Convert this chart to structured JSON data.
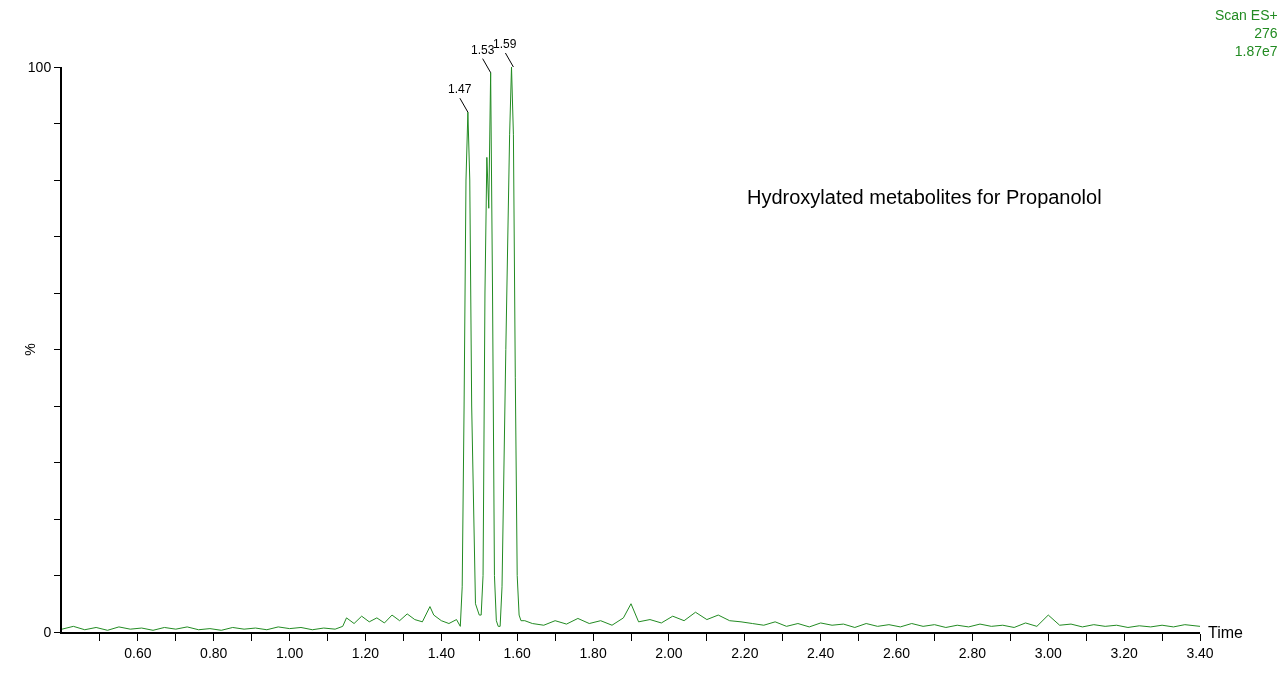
{
  "chart_data": {
    "type": "line",
    "xlabel": "Time",
    "ylabel": "%",
    "annotations": [
      "Scan ES+\n276\n1.87e7",
      "Hydroxylated metabolites for Propanolol",
      {
        "text": "1.47",
        "x": 1.47,
        "y": 92
      },
      {
        "text": "1.53",
        "x": 1.53,
        "y": 99
      },
      {
        "text": "1.59",
        "x": 1.59,
        "y": 100
      }
    ],
    "series": [
      {
        "color": "#228b22",
        "x": [
          0.4,
          0.43,
          0.46,
          0.49,
          0.52,
          0.55,
          0.58,
          0.61,
          0.64,
          0.67,
          0.7,
          0.73,
          0.76,
          0.79,
          0.82,
          0.85,
          0.88,
          0.91,
          0.94,
          0.97,
          1.0,
          1.03,
          1.06,
          1.09,
          1.12,
          1.14,
          1.15,
          1.17,
          1.19,
          1.21,
          1.23,
          1.25,
          1.27,
          1.29,
          1.31,
          1.33,
          1.35,
          1.37,
          1.38,
          1.4,
          1.42,
          1.44,
          1.45,
          1.455,
          1.46,
          1.465,
          1.47,
          1.475,
          1.48,
          1.49,
          1.5,
          1.505,
          1.51,
          1.515,
          1.52,
          1.525,
          1.53,
          1.535,
          1.54,
          1.545,
          1.55,
          1.555,
          1.56,
          1.57,
          1.58,
          1.585,
          1.59,
          1.595,
          1.6,
          1.605,
          1.61,
          1.62,
          1.64,
          1.67,
          1.7,
          1.73,
          1.76,
          1.79,
          1.82,
          1.85,
          1.88,
          1.9,
          1.92,
          1.95,
          1.98,
          2.01,
          2.04,
          2.07,
          2.1,
          2.13,
          2.16,
          2.19,
          2.22,
          2.25,
          2.28,
          2.31,
          2.34,
          2.37,
          2.4,
          2.43,
          2.46,
          2.49,
          2.52,
          2.55,
          2.58,
          2.61,
          2.64,
          2.67,
          2.7,
          2.73,
          2.76,
          2.79,
          2.82,
          2.85,
          2.88,
          2.91,
          2.94,
          2.97,
          3.0,
          3.03,
          3.06,
          3.09,
          3.12,
          3.15,
          3.18,
          3.21,
          3.24,
          3.27,
          3.3,
          3.33,
          3.36,
          3.4
        ],
        "values": [
          0.5,
          1,
          0.4,
          0.8,
          0.3,
          0.9,
          0.5,
          0.7,
          0.3,
          0.8,
          0.5,
          0.9,
          0.4,
          0.6,
          0.3,
          0.8,
          0.5,
          0.7,
          0.4,
          0.9,
          0.6,
          0.8,
          0.4,
          0.7,
          0.5,
          1,
          2.5,
          1.5,
          2.8,
          1.8,
          2.5,
          1.6,
          3,
          2,
          3.2,
          2.2,
          1.8,
          4.5,
          3,
          2,
          1.5,
          2.2,
          1,
          8,
          40,
          80,
          92,
          80,
          40,
          5,
          3,
          3,
          10,
          60,
          84,
          75,
          99,
          60,
          10,
          2,
          1,
          1,
          8,
          50,
          88,
          100,
          88,
          45,
          10,
          3,
          2,
          2,
          1.5,
          1.2,
          2,
          1.4,
          2.4,
          1.5,
          2,
          1.2,
          2.5,
          5,
          1.8,
          2.2,
          1.6,
          2.8,
          2,
          3.5,
          2.2,
          3,
          2,
          1.8,
          1.5,
          1.2,
          1.8,
          1,
          1.5,
          0.9,
          1.6,
          1.2,
          1.4,
          0.8,
          1.5,
          1,
          1.3,
          0.9,
          1.5,
          1,
          1.3,
          0.8,
          1.2,
          0.9,
          1.4,
          1,
          1.2,
          0.8,
          1.6,
          1,
          3,
          1.2,
          1.4,
          0.9,
          1.3,
          1,
          1.2,
          0.8,
          1.1,
          0.9,
          1.2,
          0.9,
          1.3,
          1
        ]
      }
    ],
    "xlim": [
      0.4,
      3.4
    ],
    "ylim": [
      0,
      100
    ],
    "xticks": [
      {
        "value": 0.5,
        "label": null
      },
      {
        "value": 0.6,
        "label": "0.60"
      },
      {
        "value": 0.7,
        "label": null
      },
      {
        "value": 0.8,
        "label": "0.80"
      },
      {
        "value": 0.9,
        "label": null
      },
      {
        "value": 1.0,
        "label": "1.00"
      },
      {
        "value": 1.1,
        "label": null
      },
      {
        "value": 1.2,
        "label": "1.20"
      },
      {
        "value": 1.3,
        "label": null
      },
      {
        "value": 1.4,
        "label": "1.40"
      },
      {
        "value": 1.5,
        "label": null
      },
      {
        "value": 1.6,
        "label": "1.60"
      },
      {
        "value": 1.7,
        "label": null
      },
      {
        "value": 1.8,
        "label": "1.80"
      },
      {
        "value": 1.9,
        "label": null
      },
      {
        "value": 2.0,
        "label": "2.00"
      },
      {
        "value": 2.1,
        "label": null
      },
      {
        "value": 2.2,
        "label": "2.20"
      },
      {
        "value": 2.3,
        "label": null
      },
      {
        "value": 2.4,
        "label": "2.40"
      },
      {
        "value": 2.5,
        "label": null
      },
      {
        "value": 2.6,
        "label": "2.60"
      },
      {
        "value": 2.7,
        "label": null
      },
      {
        "value": 2.8,
        "label": "2.80"
      },
      {
        "value": 2.9,
        "label": null
      },
      {
        "value": 3.0,
        "label": "3.00"
      },
      {
        "value": 3.1,
        "label": null
      },
      {
        "value": 3.2,
        "label": "3.20"
      },
      {
        "value": 3.3,
        "label": null
      },
      {
        "value": 3.4,
        "label": "3.40"
      }
    ],
    "yticks": [
      0,
      {
        "value": 10,
        "label": null
      },
      {
        "value": 20,
        "label": null
      },
      {
        "value": 30,
        "label": null
      },
      {
        "value": 40,
        "label": null
      },
      {
        "value": 50,
        "label": null
      },
      {
        "value": 60,
        "label": null
      },
      {
        "value": 70,
        "label": null
      },
      {
        "value": 80,
        "label": null
      },
      {
        "value": 90,
        "label": null
      },
      100
    ],
    "marker": "none",
    "line_style": "solid"
  }
}
